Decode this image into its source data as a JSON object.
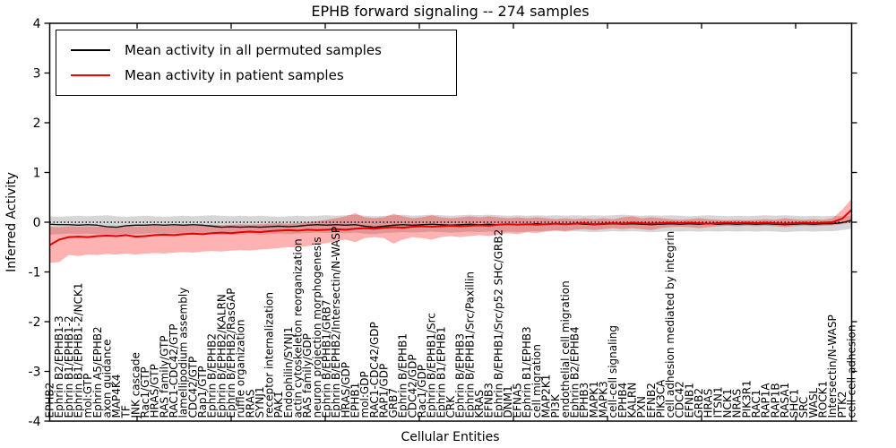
{
  "chart": {
    "title": "EPHB forward signaling -- 274 samples",
    "xlabel": "Cellular Entities",
    "ylabel": "Inferred Activity"
  },
  "legend": {
    "items": [
      {
        "label": "Mean activity in all permuted samples",
        "color": "#000000"
      },
      {
        "label": "Mean activity in patient samples",
        "color": "#ff0000"
      }
    ]
  },
  "chart_data": {
    "type": "line",
    "title": "EPHB forward signaling -- 274 samples",
    "xlabel": "Cellular Entities",
    "ylabel": "Inferred Activity",
    "ylim": [
      -4,
      4
    ],
    "y_ticks": [
      -4,
      -3,
      -2,
      -1,
      0,
      1,
      2,
      3,
      4
    ],
    "zero_line": 0,
    "grid": false,
    "legend_position": "upper left",
    "categories": [
      "EPHB2",
      "Ephrin B2/EPHB1-3",
      "Ephrin B1/EPHB1-2",
      "Ephrin B1/EPHB1-2/NCK1",
      "mol:GTP",
      "Ephrin A5/EPHB2",
      "axon guidance",
      "MAP4K4",
      "TF",
      "JNK cascade",
      "Rac1/GTP",
      "HRAS/GTP",
      "RAS family/GTP",
      "RAC1-CDC42/GTP",
      "lamellipodium assembly",
      "CDC42/GTP",
      "Rap1/GTP",
      "Ephrin B/EPHB2",
      "Ephrin B/EPHB2/KALRN",
      "Ephrin B/EPHB2/RasGAP",
      "ruffle organization",
      "RRAS",
      "SYNJ1",
      "receptor internalization",
      "PAK1",
      "Endophilin/SYNJ1",
      "actin cytoskeleton reorganization",
      "RAS family/GDP",
      "neuron projection morphogenesis",
      "Ephrin B/EPHB1/GRB7",
      "Ephrin B/EPHB2/Intersectin/N-WASP",
      "HRAS/GDP",
      "EPHB1",
      "mol:GDP",
      "RAC1-CDC42/GDP",
      "RAP1/GDP",
      "GRB7",
      "Ephrin B/EPHB1",
      "CDC42/GDP",
      "Rac1/GDP",
      "Ephrin B/EPHB1/Src",
      "Ephrin B1/EPHB1",
      "CRK",
      "Ephrin B/EPHB3",
      "Ephrin B/EPHB1/Src/Paxillin",
      "KRAS",
      "EFNB3",
      "Ephrin B/EPHB1/Src/p52 SHC/GRB2",
      "DNM1",
      "EFNA5",
      "Ephrin B1/EPHB3",
      "cell migration",
      "MAP2K1",
      "PI3K",
      "endothelial cell migration",
      "Ephrin B2/EPHB4",
      "EPHB3",
      "MAPK1",
      "MAPK3",
      "cell-cell signaling",
      "EPHB4",
      "KALRN",
      "PXN",
      "EFNB2",
      "PIK3CA",
      "cell adhesion mediated by integrin",
      "CDC42",
      "EFNB1",
      "GRB2",
      "HRAS",
      "ITSN1",
      "NCK1",
      "NRAS",
      "PIK3R1",
      "RAC1",
      "RAP1A",
      "RAP1B",
      "RASA1",
      "SHC1",
      "SRC",
      "WASL",
      "ROCK1",
      "Intersectin/N-WASP",
      "PTK2",
      "cell-cell adhesion"
    ],
    "series": [
      {
        "name": "Mean activity in all permuted samples",
        "color": "#000000",
        "width": 1.3,
        "values": [
          -0.04,
          -0.05,
          -0.05,
          -0.06,
          -0.05,
          -0.06,
          -0.09,
          -0.1,
          -0.07,
          -0.06,
          -0.06,
          -0.05,
          -0.06,
          -0.05,
          -0.06,
          -0.05,
          -0.06,
          -0.08,
          -0.1,
          -0.09,
          -0.1,
          -0.09,
          -0.1,
          -0.09,
          -0.08,
          -0.09,
          -0.08,
          -0.06,
          -0.05,
          -0.06,
          -0.05,
          -0.06,
          -0.05,
          -0.08,
          -0.1,
          -0.08,
          -0.06,
          -0.05,
          -0.06,
          -0.05,
          -0.04,
          -0.05,
          -0.06,
          -0.05,
          -0.04,
          -0.05,
          -0.04,
          -0.05,
          -0.04,
          -0.05,
          -0.04,
          -0.03,
          -0.04,
          -0.03,
          -0.04,
          -0.03,
          -0.04,
          -0.05,
          -0.04,
          -0.03,
          -0.04,
          -0.03,
          -0.04,
          -0.05,
          -0.04,
          -0.03,
          -0.04,
          -0.03,
          -0.04,
          -0.03,
          -0.04,
          -0.03,
          -0.04,
          -0.03,
          -0.04,
          -0.03,
          -0.04,
          -0.05,
          -0.04,
          -0.03,
          -0.04,
          -0.03,
          -0.03,
          -0.01,
          0.04
        ]
      },
      {
        "name": "Mean activity in patient samples",
        "color": "#e60000",
        "width": 2,
        "values": [
          -0.46,
          -0.35,
          -0.3,
          -0.29,
          -0.3,
          -0.28,
          -0.27,
          -0.28,
          -0.26,
          -0.29,
          -0.28,
          -0.26,
          -0.25,
          -0.26,
          -0.24,
          -0.23,
          -0.24,
          -0.22,
          -0.21,
          -0.22,
          -0.2,
          -0.19,
          -0.2,
          -0.18,
          -0.17,
          -0.16,
          -0.17,
          -0.15,
          -0.16,
          -0.15,
          -0.14,
          -0.15,
          -0.13,
          -0.12,
          -0.13,
          -0.11,
          -0.1,
          -0.11,
          -0.09,
          -0.08,
          -0.09,
          -0.08,
          -0.07,
          -0.08,
          -0.07,
          -0.06,
          -0.07,
          -0.05,
          -0.04,
          -0.05,
          -0.04,
          -0.05,
          -0.04,
          -0.03,
          -0.04,
          -0.03,
          -0.02,
          -0.04,
          -0.03,
          -0.02,
          -0.03,
          -0.01,
          -0.02,
          -0.03,
          -0.02,
          -0.01,
          -0.02,
          -0.01,
          -0.02,
          -0.03,
          -0.02,
          -0.01,
          -0.02,
          -0.01,
          -0.02,
          -0.01,
          -0.02,
          -0.03,
          -0.02,
          -0.01,
          -0.02,
          -0.01,
          0.0,
          0.07,
          0.25
        ]
      }
    ],
    "bands": [
      {
        "name": "permuted-range",
        "color": "#000000",
        "opacity": 0.16,
        "hi": [
          0.12,
          0.11,
          0.12,
          0.13,
          0.12,
          0.13,
          0.14,
          0.12,
          0.11,
          0.12,
          0.13,
          0.12,
          0.11,
          0.12,
          0.13,
          0.12,
          0.13,
          0.14,
          0.13,
          0.12,
          0.13,
          0.12,
          0.13,
          0.12,
          0.11,
          0.12,
          0.13,
          0.12,
          0.13,
          0.14,
          0.13,
          0.14,
          0.15,
          0.13,
          0.12,
          0.13,
          0.14,
          0.15,
          0.13,
          0.14,
          0.15,
          0.14,
          0.13,
          0.14,
          0.15,
          0.14,
          0.15,
          0.14,
          0.13,
          0.14,
          0.13,
          0.14,
          0.13,
          0.14,
          0.13,
          0.14,
          0.13,
          0.14,
          0.13,
          0.14,
          0.15,
          0.14,
          0.13,
          0.14,
          0.13,
          0.14,
          0.13,
          0.12,
          0.13,
          0.14,
          0.13,
          0.12,
          0.13,
          0.12,
          0.13,
          0.14,
          0.13,
          0.14,
          0.13,
          0.12,
          0.13,
          0.12,
          0.13,
          0.12,
          0.13
        ],
        "lo": [
          -0.25,
          -0.24,
          -0.23,
          -0.24,
          -0.23,
          -0.24,
          -0.25,
          -0.24,
          -0.23,
          -0.24,
          -0.23,
          -0.22,
          -0.23,
          -0.22,
          -0.23,
          -0.22,
          -0.23,
          -0.24,
          -0.25,
          -0.24,
          -0.25,
          -0.24,
          -0.25,
          -0.24,
          -0.23,
          -0.24,
          -0.23,
          -0.22,
          -0.21,
          -0.22,
          -0.21,
          -0.22,
          -0.21,
          -0.23,
          -0.24,
          -0.22,
          -0.21,
          -0.2,
          -0.21,
          -0.2,
          -0.19,
          -0.2,
          -0.21,
          -0.2,
          -0.19,
          -0.2,
          -0.19,
          -0.2,
          -0.19,
          -0.2,
          -0.19,
          -0.18,
          -0.19,
          -0.18,
          -0.19,
          -0.18,
          -0.19,
          -0.2,
          -0.19,
          -0.18,
          -0.19,
          -0.18,
          -0.19,
          -0.2,
          -0.19,
          -0.18,
          -0.19,
          -0.18,
          -0.19,
          -0.18,
          -0.19,
          -0.18,
          -0.19,
          -0.18,
          -0.19,
          -0.18,
          -0.19,
          -0.2,
          -0.19,
          -0.18,
          -0.19,
          -0.18,
          -0.18,
          -0.16,
          -0.13
        ]
      },
      {
        "name": "patient-range",
        "color": "#ff0000",
        "opacity": 0.3,
        "hi": [
          -0.09,
          -0.1,
          -0.08,
          -0.09,
          -0.08,
          -0.09,
          -0.08,
          -0.09,
          -0.07,
          -0.09,
          -0.08,
          -0.07,
          -0.08,
          -0.07,
          -0.06,
          -0.07,
          -0.06,
          -0.05,
          -0.06,
          -0.05,
          -0.04,
          -0.05,
          -0.04,
          -0.03,
          -0.02,
          -0.03,
          -0.02,
          0.0,
          0.02,
          0.05,
          0.08,
          0.12,
          0.18,
          0.1,
          0.08,
          0.1,
          0.17,
          0.12,
          0.08,
          0.1,
          0.14,
          0.1,
          0.08,
          0.1,
          0.12,
          0.1,
          0.12,
          0.1,
          0.08,
          0.1,
          0.08,
          0.1,
          0.08,
          0.06,
          0.08,
          0.06,
          0.08,
          0.06,
          0.08,
          0.06,
          0.1,
          0.12,
          0.08,
          0.1,
          0.08,
          0.06,
          0.05,
          0.06,
          0.08,
          0.06,
          0.05,
          0.04,
          0.05,
          0.04,
          0.05,
          0.06,
          0.05,
          0.08,
          0.06,
          0.05,
          0.06,
          0.05,
          0.08,
          0.25,
          0.47
        ],
        "lo": [
          -0.82,
          -0.8,
          -0.66,
          -0.68,
          -0.65,
          -0.66,
          -0.64,
          -0.65,
          -0.63,
          -0.65,
          -0.63,
          -0.62,
          -0.63,
          -0.61,
          -0.6,
          -0.61,
          -0.59,
          -0.58,
          -0.59,
          -0.57,
          -0.56,
          -0.57,
          -0.55,
          -0.54,
          -0.52,
          -0.5,
          -0.51,
          -0.48,
          -0.45,
          -0.42,
          -0.38,
          -0.35,
          -0.4,
          -0.32,
          -0.3,
          -0.32,
          -0.43,
          -0.35,
          -0.3,
          -0.32,
          -0.35,
          -0.3,
          -0.28,
          -0.3,
          -0.28,
          -0.26,
          -0.28,
          -0.25,
          -0.22,
          -0.24,
          -0.2,
          -0.22,
          -0.18,
          -0.16,
          -0.18,
          -0.15,
          -0.14,
          -0.16,
          -0.14,
          -0.12,
          -0.14,
          -0.12,
          -0.14,
          -0.16,
          -0.12,
          -0.1,
          -0.09,
          -0.1,
          -0.12,
          -0.1,
          -0.08,
          -0.07,
          -0.08,
          -0.07,
          -0.08,
          -0.07,
          -0.08,
          -0.1,
          -0.08,
          -0.07,
          -0.08,
          -0.07,
          -0.06,
          -0.04,
          0.0
        ]
      }
    ]
  }
}
